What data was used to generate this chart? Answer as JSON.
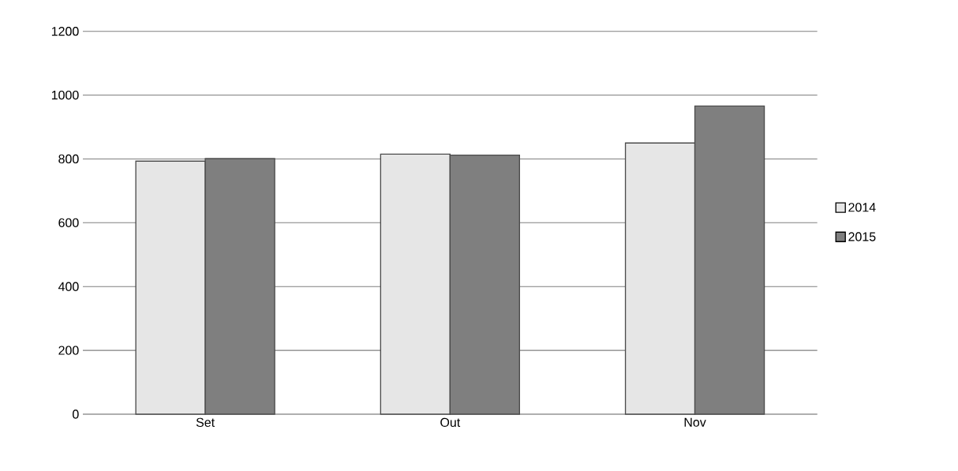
{
  "chart_data": {
    "type": "bar",
    "categories": [
      "Set",
      "Out",
      "Nov"
    ],
    "series": [
      {
        "name": "2014",
        "color": "#e6e6e6",
        "values": [
          793,
          815,
          850
        ]
      },
      {
        "name": "2015",
        "color": "#7f7f7f",
        "values": [
          801,
          812,
          966
        ]
      }
    ],
    "ylim": [
      0,
      1200
    ],
    "yticks": [
      0,
      200,
      400,
      600,
      800,
      1000,
      1200
    ],
    "grid": "y",
    "legend": "right"
  }
}
